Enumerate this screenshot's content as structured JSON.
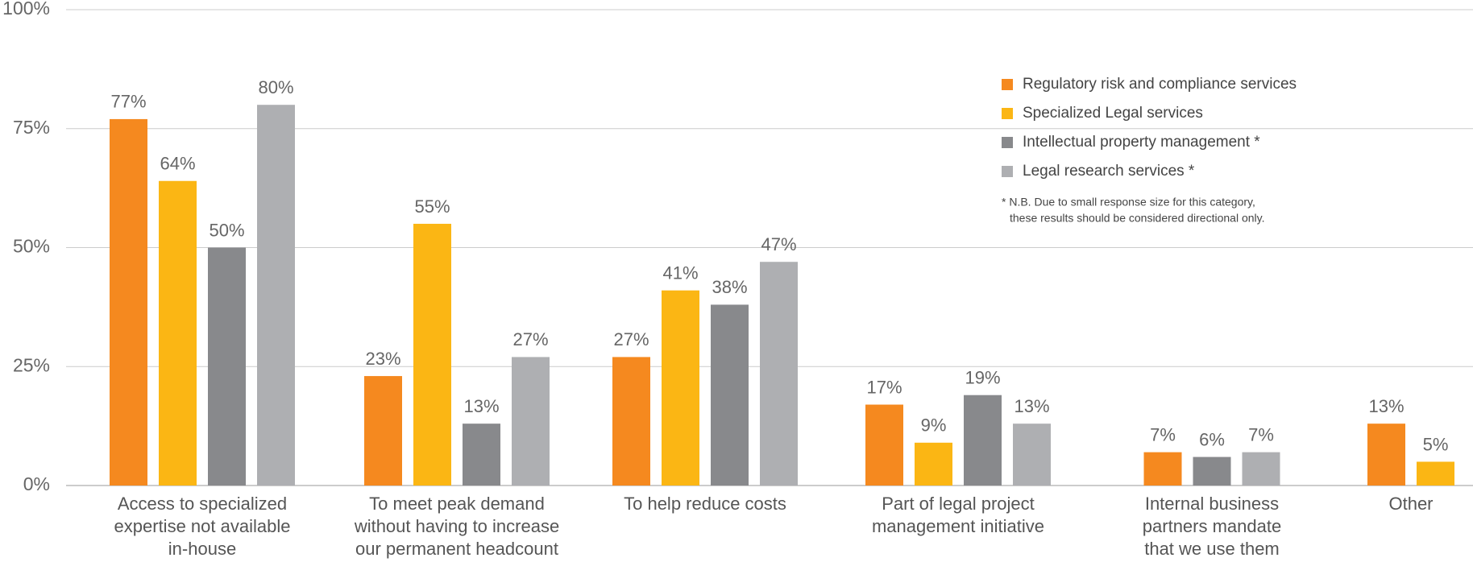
{
  "chart_data": {
    "type": "bar",
    "categories": [
      "Access to specialized\nexpertise not available\nin-house",
      "To meet peak demand\nwithout having to increase\nour permanent headcount",
      "To help reduce costs",
      "Part of legal project\nmanagement initiative",
      "Internal business\npartners mandate\nthat we use them",
      "Other"
    ],
    "series": [
      {
        "name": "Regulatory risk and compliance services",
        "color": "#f5891f",
        "values": [
          77,
          23,
          27,
          17,
          7,
          13
        ],
        "value_labels": [
          "77%",
          "23%",
          "27%",
          "17%",
          "7%",
          "13%"
        ]
      },
      {
        "name": "Specialized Legal services",
        "color": "#fbb614",
        "values": [
          64,
          55,
          41,
          9,
          null,
          5
        ],
        "value_labels": [
          "64%",
          "55%",
          "41%",
          "9%",
          null,
          "5%"
        ]
      },
      {
        "name": "Intellectual property management *",
        "color": "#88898c",
        "values": [
          50,
          13,
          38,
          19,
          6,
          null
        ],
        "value_labels": [
          "50%",
          "13%",
          "38%",
          "19%",
          "6%",
          null
        ]
      },
      {
        "name": "Legal research services *",
        "color": "#aeafb2",
        "values": [
          80,
          27,
          47,
          13,
          7,
          null
        ],
        "value_labels": [
          "80%",
          "27%",
          "47%",
          "13%",
          "7%",
          null
        ]
      }
    ],
    "ylim": [
      0,
      100
    ],
    "yticks": [
      {
        "value": 0,
        "label": "0%"
      },
      {
        "value": 25,
        "label": "25%"
      },
      {
        "value": 50,
        "label": "50%"
      },
      {
        "value": 75,
        "label": "75%"
      },
      {
        "value": 100,
        "label": "100%"
      }
    ],
    "grid": true,
    "legend": "top-right",
    "note": [
      "* N.B. Due to small response size for this category,",
      "these results should be considered directional only."
    ]
  }
}
